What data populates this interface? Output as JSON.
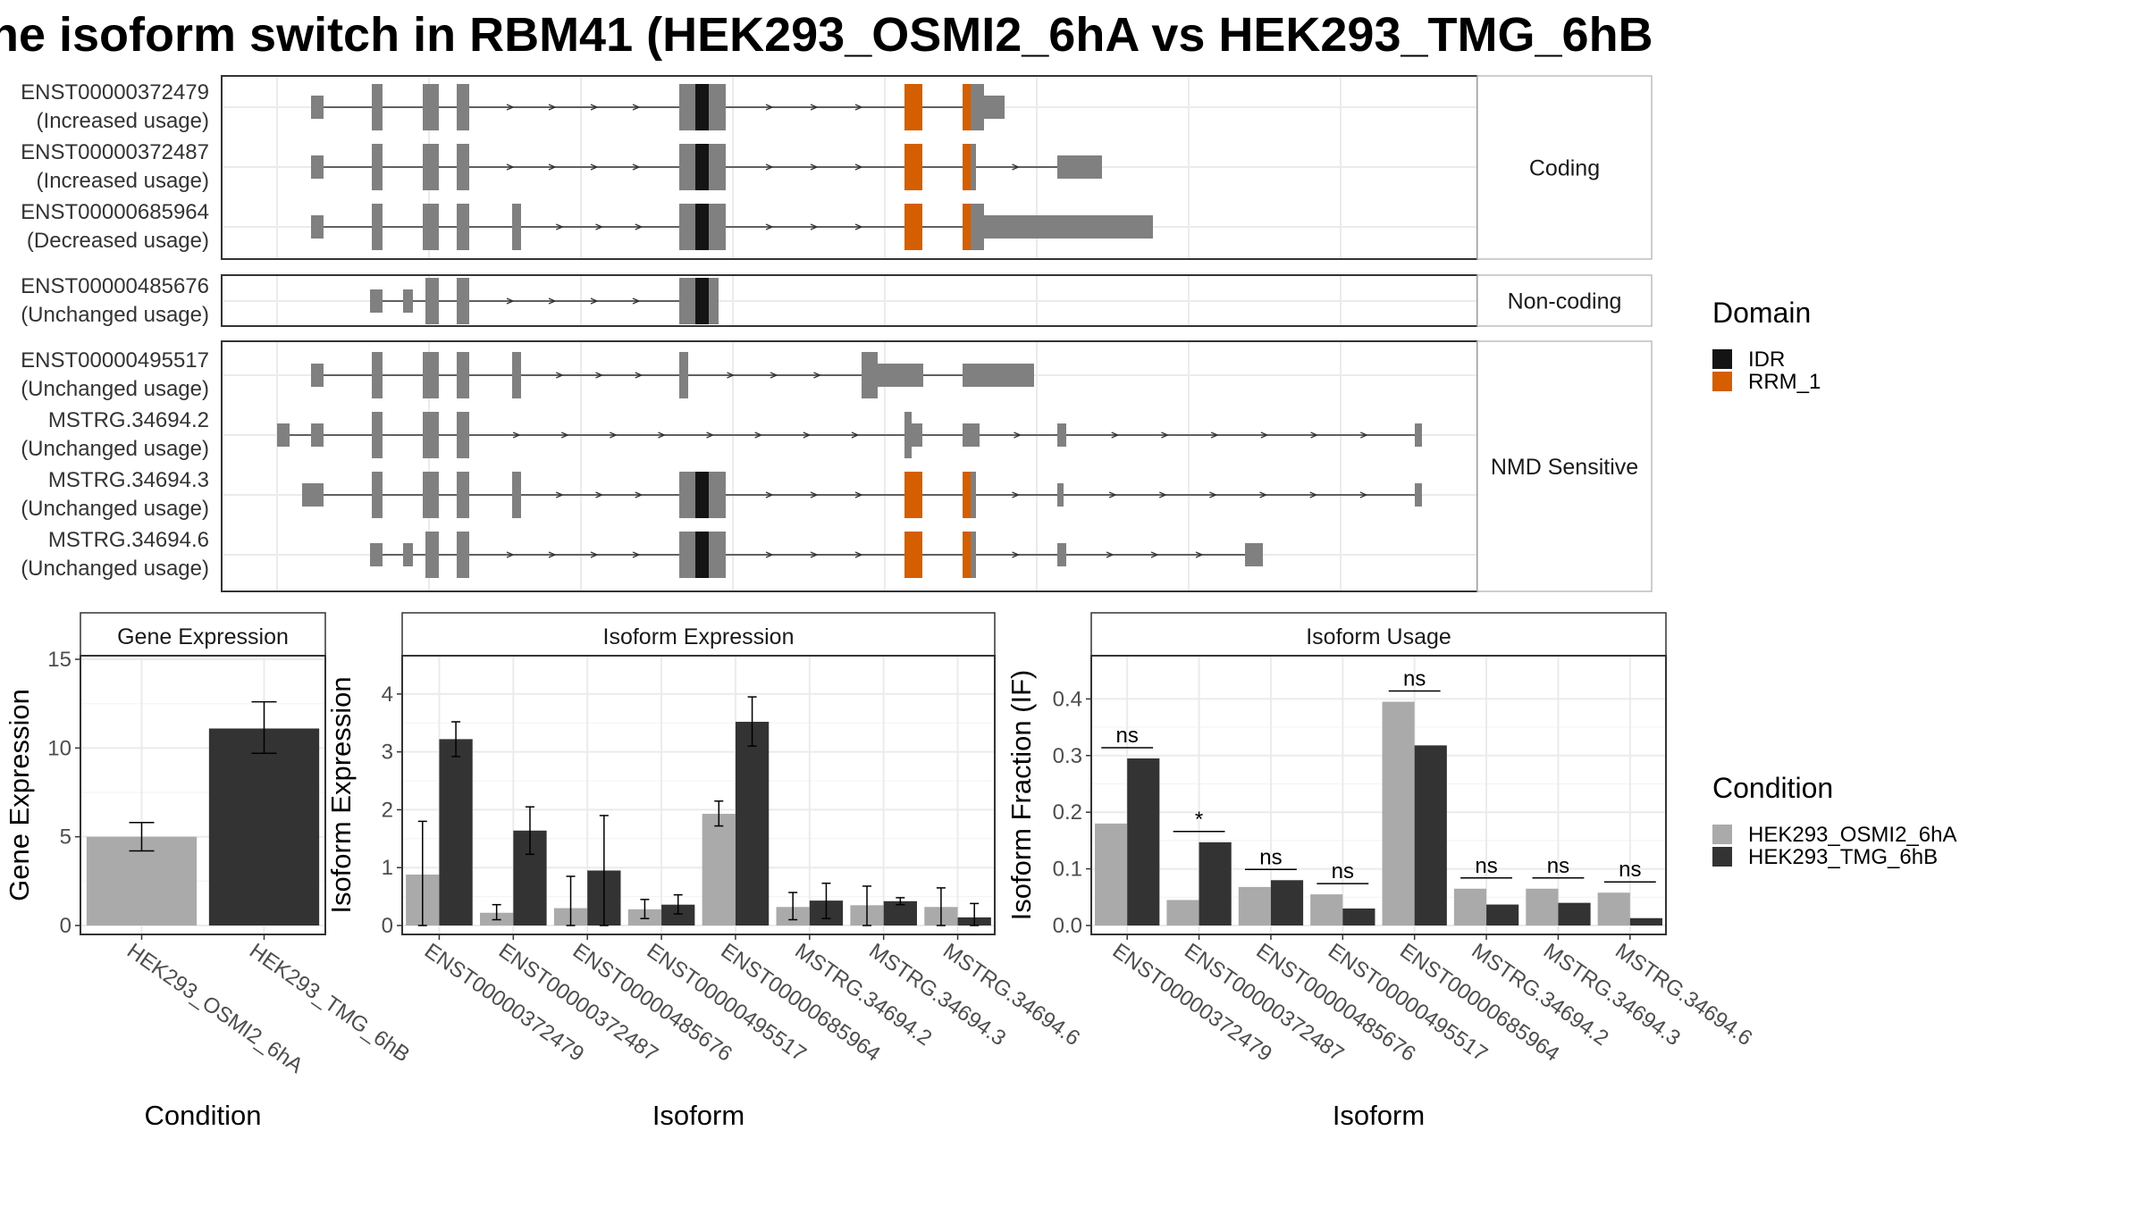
{
  "title": "he isoform switch in RBM41 (HEK293_OSMI2_6hA vs HEK293_TMG_6hB",
  "colors": {
    "exon": "#808080",
    "IDR": "#141414",
    "RRM_1": "#D55E00",
    "cond1": "#AAAAAA",
    "cond2": "#333333",
    "grid": "#EBEBEB",
    "frame": "#333333"
  },
  "transcript_panels": [
    {
      "label": "Coding",
      "transcripts": [
        {
          "id": "ENST00000372479",
          "usage": "(Increased usage)"
        },
        {
          "id": "ENST00000372487",
          "usage": "(Increased usage)"
        },
        {
          "id": "ENST00000685964",
          "usage": "(Decreased usage)"
        }
      ]
    },
    {
      "label": "Non-coding",
      "transcripts": [
        {
          "id": "ENST00000485676",
          "usage": "(Unchanged usage)"
        }
      ]
    },
    {
      "label": "NMD Sensitive",
      "transcripts": [
        {
          "id": "ENST00000495517",
          "usage": "(Unchanged usage)"
        },
        {
          "id": "MSTRG.34694.2",
          "usage": "(Unchanged usage)"
        },
        {
          "id": "MSTRG.34694.3",
          "usage": "(Unchanged usage)"
        },
        {
          "id": "MSTRG.34694.6",
          "usage": "(Unchanged usage)"
        }
      ]
    }
  ],
  "domain_legend": {
    "title": "Domain",
    "items": [
      "IDR",
      "RRM_1"
    ]
  },
  "condition_legend": {
    "title": "Condition",
    "items": [
      "HEK293_OSMI2_6hA",
      "HEK293_TMG_6hB"
    ]
  },
  "chart_data": [
    {
      "type": "bar",
      "title": "Gene Expression",
      "xlabel": "Condition",
      "ylabel": "Gene Expression",
      "ylim": [
        0,
        15
      ],
      "yticks": [
        0,
        5,
        10,
        15
      ],
      "categories": [
        "HEK293_OSMI2_6hA",
        "HEK293_TMG_6hB"
      ],
      "values": [
        5.0,
        11.1
      ],
      "err_low": [
        4.2,
        9.7
      ],
      "err_high": [
        5.8,
        12.6
      ]
    },
    {
      "type": "bar",
      "title": "Isoform Expression",
      "xlabel": "Isoform",
      "ylabel": "Isoform Expression",
      "ylim": [
        0,
        4.6
      ],
      "yticks": [
        0,
        1,
        2,
        3,
        4
      ],
      "categories": [
        "ENST00000372479",
        "ENST00000372487",
        "ENST00000485676",
        "ENST00000495517",
        "ENST00000685964",
        "MSTRG.34694.2",
        "MSTRG.34694.3",
        "MSTRG.34694.6"
      ],
      "series": [
        {
          "name": "HEK293_OSMI2_6hA",
          "values": [
            0.88,
            0.22,
            0.3,
            0.28,
            1.93,
            0.32,
            0.35,
            0.32
          ],
          "err_low": [
            0.0,
            0.1,
            0.0,
            0.12,
            1.72,
            0.1,
            0.0,
            0.0
          ],
          "err_high": [
            1.8,
            0.36,
            0.85,
            0.45,
            2.15,
            0.57,
            0.68,
            0.65
          ]
        },
        {
          "name": "HEK293_TMG_6hB",
          "values": [
            3.22,
            1.64,
            0.95,
            0.36,
            3.52,
            0.43,
            0.42,
            0.14
          ],
          "err_low": [
            2.92,
            1.23,
            0.0,
            0.2,
            3.1,
            0.12,
            0.36,
            0.0
          ],
          "err_high": [
            3.52,
            2.05,
            1.9,
            0.53,
            3.95,
            0.73,
            0.48,
            0.38
          ]
        }
      ]
    },
    {
      "type": "bar",
      "title": "Isoform Usage",
      "xlabel": "Isoform",
      "ylabel": "Isoform Fraction (IF)",
      "ylim": [
        0,
        0.47
      ],
      "yticks": [
        0.0,
        0.1,
        0.2,
        0.3,
        0.4
      ],
      "ytick_labels": [
        "0.0",
        "0.1",
        "0.2",
        "0.3",
        "0.4"
      ],
      "categories": [
        "ENST00000372479",
        "ENST00000372487",
        "ENST00000485676",
        "ENST00000495517",
        "ENST00000685964",
        "MSTRG.34694.2",
        "MSTRG.34694.3",
        "MSTRG.34694.6"
      ],
      "series": [
        {
          "name": "HEK293_OSMI2_6hA",
          "values": [
            0.18,
            0.045,
            0.068,
            0.055,
            0.395,
            0.065,
            0.065,
            0.058
          ]
        },
        {
          "name": "HEK293_TMG_6hB",
          "values": [
            0.295,
            0.147,
            0.08,
            0.03,
            0.318,
            0.037,
            0.04,
            0.013
          ]
        }
      ],
      "significance": [
        "ns",
        "*",
        "ns",
        "ns",
        "ns",
        "ns",
        "ns",
        "ns"
      ]
    }
  ]
}
